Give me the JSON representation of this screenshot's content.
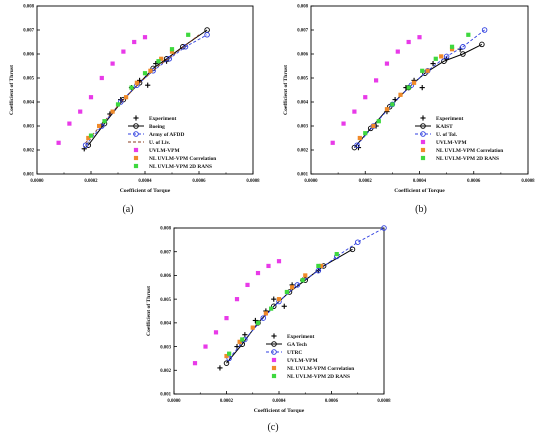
{
  "chart_data": [
    {
      "type": "scatter",
      "caption": "(a)",
      "xlabel": "Coefficient of Torque",
      "ylabel": "Coefficient of Thrust",
      "xlim": [
        0,
        0.0008
      ],
      "ylim": [
        0.001,
        0.008
      ],
      "x_ticks": [
        "0.0000",
        "0.0002",
        "0.0004",
        "0.0006",
        "0.0008"
      ],
      "y_ticks": [
        "0.001",
        "0.002",
        "0.003",
        "0.004",
        "0.005",
        "0.006",
        "0.007",
        "0.008"
      ],
      "grid": false,
      "legend_position": "bottom-right",
      "series": [
        {
          "name": "Experiment",
          "marker": "plus",
          "line": "none",
          "color": "#000000",
          "points": [
            [
              0.000175,
              0.00205
            ],
            [
              0.00024,
              0.003
            ],
            [
              0.00027,
              0.0035
            ],
            [
              0.00031,
              0.0041
            ],
            [
              0.00035,
              0.0046
            ],
            [
              0.00038,
              0.0049
            ],
            [
              0.00041,
              0.0047
            ],
            [
              0.00044,
              0.0056
            ],
            [
              0.00048,
              0.0057
            ]
          ]
        },
        {
          "name": "Boeing",
          "marker": "circle",
          "line": "solid",
          "color": "#000000",
          "points": [
            [
              0.00019,
              0.0022
            ],
            [
              0.00025,
              0.0031
            ],
            [
              0.00032,
              0.0041
            ],
            [
              0.00038,
              0.0048
            ],
            [
              0.00043,
              0.0054
            ],
            [
              0.00048,
              0.0058
            ],
            [
              0.00054,
              0.0063
            ],
            [
              0.00063,
              0.007
            ]
          ]
        },
        {
          "name": "Army of AFDD",
          "marker": "circle",
          "line": "dashed",
          "color": "#2f3fe0",
          "points": [
            [
              0.00018,
              0.0022
            ],
            [
              0.00024,
              0.003
            ],
            [
              0.00031,
              0.004
            ],
            [
              0.00037,
              0.0047
            ],
            [
              0.00043,
              0.0053
            ],
            [
              0.00049,
              0.0058
            ],
            [
              0.00055,
              0.0063
            ],
            [
              0.00063,
              0.0068
            ]
          ]
        },
        {
          "name": "U. of Liv.",
          "marker": "none",
          "line": "dashed",
          "color": "#8a3b1f",
          "points": [
            [
              0.00018,
              0.0023
            ],
            [
              0.00025,
              0.0032
            ],
            [
              0.00032,
              0.0041
            ],
            [
              0.00038,
              0.0048
            ],
            [
              0.00045,
              0.0055
            ],
            [
              0.00052,
              0.0061
            ],
            [
              0.0006,
              0.0068
            ]
          ]
        },
        {
          "name": "UVLM-VPM",
          "marker": "square",
          "line": "none",
          "color": "#e83ae8",
          "points": [
            [
              8e-05,
              0.0023
            ],
            [
              0.00012,
              0.0031
            ],
            [
              0.00016,
              0.0036
            ],
            [
              0.0002,
              0.0042
            ],
            [
              0.00024,
              0.005
            ],
            [
              0.00028,
              0.0056
            ],
            [
              0.00032,
              0.0061
            ],
            [
              0.00036,
              0.0065
            ],
            [
              0.0004,
              0.0067
            ]
          ]
        },
        {
          "name": "NL UVLM-VPM Correlation",
          "marker": "square",
          "line": "none",
          "color": "#f08a2a",
          "points": [
            [
              0.00019,
              0.0025
            ],
            [
              0.00023,
              0.003
            ],
            [
              0.00028,
              0.0036
            ],
            [
              0.00033,
              0.0042
            ],
            [
              0.00037,
              0.0048
            ],
            [
              0.00042,
              0.0053
            ],
            [
              0.00046,
              0.0058
            ],
            [
              0.0005,
              0.0061
            ]
          ]
        },
        {
          "name": "NL UVLM-VPM 2D RANS",
          "marker": "square",
          "line": "none",
          "color": "#3ed83e",
          "points": [
            [
              0.0002,
              0.0026
            ],
            [
              0.00025,
              0.0032
            ],
            [
              0.0003,
              0.0039
            ],
            [
              0.00035,
              0.0046
            ],
            [
              0.0004,
              0.0052
            ],
            [
              0.00045,
              0.0057
            ],
            [
              0.0005,
              0.0062
            ],
            [
              0.00056,
              0.0068
            ]
          ]
        }
      ]
    },
    {
      "type": "scatter",
      "caption": "(b)",
      "xlabel": "Coefficient of Torque",
      "ylabel": "Coefficient of Thrust",
      "xlim": [
        0,
        0.0008
      ],
      "ylim": [
        0.001,
        0.008
      ],
      "x_ticks": [
        "0.0000",
        "0.0002",
        "0.0004",
        "0.0006",
        "0.0008"
      ],
      "y_ticks": [
        "0.001",
        "0.002",
        "0.003",
        "0.004",
        "0.005",
        "0.006",
        "0.007",
        "0.008"
      ],
      "grid": false,
      "legend_position": "bottom-right",
      "series": [
        {
          "name": "Experiment",
          "marker": "plus",
          "line": "none",
          "color": "#000000",
          "points": [
            [
              0.000175,
              0.0021
            ],
            [
              0.00024,
              0.003
            ],
            [
              0.00028,
              0.0036
            ],
            [
              0.00031,
              0.0041
            ],
            [
              0.00035,
              0.0046
            ],
            [
              0.00038,
              0.0049
            ],
            [
              0.00041,
              0.0046
            ],
            [
              0.00045,
              0.0056
            ],
            [
              0.0005,
              0.0058
            ],
            [
              0.00055,
              0.0062
            ]
          ]
        },
        {
          "name": "KAIST",
          "marker": "circle",
          "line": "solid",
          "color": "#000000",
          "points": [
            [
              0.00016,
              0.0021
            ],
            [
              0.00022,
              0.0029
            ],
            [
              0.00029,
              0.0038
            ],
            [
              0.00036,
              0.0046
            ],
            [
              0.00042,
              0.0052
            ],
            [
              0.00049,
              0.0057
            ],
            [
              0.00056,
              0.006
            ],
            [
              0.00063,
              0.0064
            ]
          ]
        },
        {
          "name": "U. of Tol.",
          "marker": "circle",
          "line": "dashed",
          "color": "#2f3fe0",
          "points": [
            [
              0.00017,
              0.0022
            ],
            [
              0.00023,
              0.003
            ],
            [
              0.0003,
              0.0039
            ],
            [
              0.00037,
              0.0047
            ],
            [
              0.00043,
              0.0053
            ],
            [
              0.0005,
              0.0059
            ],
            [
              0.00056,
              0.0063
            ],
            [
              0.00064,
              0.007
            ]
          ]
        },
        {
          "name": "UVLM-VPM",
          "marker": "square",
          "line": "none",
          "color": "#e83ae8",
          "points": [
            [
              8e-05,
              0.0023
            ],
            [
              0.00012,
              0.0031
            ],
            [
              0.00016,
              0.0036
            ],
            [
              0.0002,
              0.0042
            ],
            [
              0.00024,
              0.0049
            ],
            [
              0.00028,
              0.0056
            ],
            [
              0.00032,
              0.0061
            ],
            [
              0.00036,
              0.0065
            ],
            [
              0.0004,
              0.0067
            ]
          ]
        },
        {
          "name": "NL UVLM-VPM Correlation",
          "marker": "square",
          "line": "none",
          "color": "#f08a2a",
          "points": [
            [
              0.00018,
              0.0025
            ],
            [
              0.00023,
              0.003
            ],
            [
              0.00028,
              0.0037
            ],
            [
              0.00033,
              0.0043
            ],
            [
              0.00038,
              0.0048
            ],
            [
              0.00043,
              0.0053
            ],
            [
              0.00048,
              0.0059
            ],
            [
              0.00052,
              0.0062
            ]
          ]
        },
        {
          "name": "NL UVLM-VPM 2D RANS",
          "marker": "square",
          "line": "none",
          "color": "#3ed83e",
          "points": [
            [
              0.0002,
              0.0027
            ],
            [
              0.00025,
              0.0032
            ],
            [
              0.0003,
              0.0039
            ],
            [
              0.00036,
              0.0046
            ],
            [
              0.00041,
              0.0053
            ],
            [
              0.00046,
              0.0058
            ],
            [
              0.00052,
              0.0063
            ],
            [
              0.00058,
              0.0068
            ]
          ]
        }
      ]
    },
    {
      "type": "scatter",
      "caption": "(c)",
      "xlabel": "Coefficient of Torque",
      "ylabel": "Coefficient of Thrust",
      "xlim": [
        0,
        0.0008
      ],
      "ylim": [
        0.001,
        0.008
      ],
      "x_ticks": [
        "0.0000",
        "0.0002",
        "0.0004",
        "0.0006",
        "0.0008"
      ],
      "y_ticks": [
        "0.001",
        "0.002",
        "0.003",
        "0.004",
        "0.005",
        "0.006",
        "0.007",
        "0.008"
      ],
      "grid": false,
      "legend_position": "bottom-right",
      "series": [
        {
          "name": "Experiment",
          "marker": "plus",
          "line": "none",
          "color": "#000000",
          "points": [
            [
              0.000175,
              0.0021
            ],
            [
              0.00024,
              0.003
            ],
            [
              0.00027,
              0.0035
            ],
            [
              0.00031,
              0.0041
            ],
            [
              0.00035,
              0.0045
            ],
            [
              0.00038,
              0.005
            ],
            [
              0.00042,
              0.0047
            ],
            [
              0.00045,
              0.0056
            ],
            [
              0.00049,
              0.0058
            ],
            [
              0.00055,
              0.0062
            ]
          ]
        },
        {
          "name": "GA Tech",
          "marker": "circle",
          "line": "solid",
          "color": "#000000",
          "points": [
            [
              0.0002,
              0.0023
            ],
            [
              0.00026,
              0.0031
            ],
            [
              0.00032,
              0.004
            ],
            [
              0.00038,
              0.0047
            ],
            [
              0.00044,
              0.0053
            ],
            [
              0.0005,
              0.0058
            ],
            [
              0.00057,
              0.0064
            ],
            [
              0.00068,
              0.0071
            ]
          ]
        },
        {
          "name": "UTRC",
          "marker": "circle",
          "line": "dashed",
          "color": "#2f3fe0",
          "points": [
            [
              0.00021,
              0.0025
            ],
            [
              0.00027,
              0.0033
            ],
            [
              0.00034,
              0.0042
            ],
            [
              0.0004,
              0.0049
            ],
            [
              0.00047,
              0.0056
            ],
            [
              0.00055,
              0.0062
            ],
            [
              0.00062,
              0.0068
            ],
            [
              0.0007,
              0.0074
            ],
            [
              0.0008,
              0.008
            ]
          ]
        },
        {
          "name": "UVLM-VPM",
          "marker": "square",
          "line": "none",
          "color": "#e83ae8",
          "points": [
            [
              8e-05,
              0.0023
            ],
            [
              0.00012,
              0.003
            ],
            [
              0.00016,
              0.0036
            ],
            [
              0.0002,
              0.0042
            ],
            [
              0.00024,
              0.005
            ],
            [
              0.00028,
              0.0056
            ],
            [
              0.00032,
              0.0061
            ],
            [
              0.00036,
              0.0064
            ],
            [
              0.0004,
              0.0066
            ]
          ]
        },
        {
          "name": "NL UVLM-VPM Correlation",
          "marker": "square",
          "line": "none",
          "color": "#f08a2a",
          "points": [
            [
              0.0002,
              0.0026
            ],
            [
              0.00025,
              0.0032
            ],
            [
              0.0003,
              0.0038
            ],
            [
              0.00035,
              0.0044
            ],
            [
              0.0004,
              0.005
            ],
            [
              0.00045,
              0.0055
            ],
            [
              0.0005,
              0.006
            ],
            [
              0.00056,
              0.0064
            ]
          ]
        },
        {
          "name": "NL UVLM-VPM 2D RANS",
          "marker": "square",
          "line": "none",
          "color": "#3ed83e",
          "points": [
            [
              0.00021,
              0.0027
            ],
            [
              0.00026,
              0.0033
            ],
            [
              0.00032,
              0.004
            ],
            [
              0.00037,
              0.0046
            ],
            [
              0.00043,
              0.0053
            ],
            [
              0.00049,
              0.0058
            ],
            [
              0.00055,
              0.0064
            ],
            [
              0.00062,
              0.0069
            ]
          ]
        }
      ]
    }
  ]
}
